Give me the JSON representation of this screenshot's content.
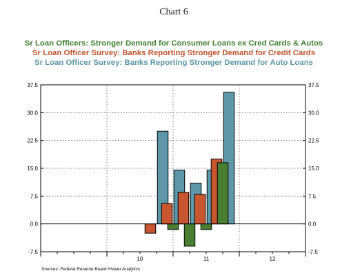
{
  "chart_data": {
    "type": "bar",
    "title": "Chart 6",
    "subtitles": [
      {
        "text": "Sr Loan Officers: Stronger Demand for Consumer Loans ex Cred Cards & Autos",
        "color": "#3f7f2f"
      },
      {
        "text": "Sr Loan Officer Survey: Banks Reporting Stronger Demand for Credit Cards",
        "color": "#c0522a"
      },
      {
        "text": "Sr Loan Officer Survey: Banks Reporting Stronger Demand for Auto Loans",
        "color": "#5b95a5"
      }
    ],
    "source": "Sources:  Federal Reserve Board /Haver Analytics",
    "ylim": [
      -7.5,
      37.5
    ],
    "yticks": [
      "-7.5",
      "0.0",
      "7.5",
      "15.0",
      "22.5",
      "30.0",
      "37.5"
    ],
    "xlim": [
      2009.0,
      2013.0
    ],
    "xticks": [
      {
        "label": "10",
        "x": 2010.5
      },
      {
        "label": "11",
        "x": 2011.5
      },
      {
        "label": "12",
        "x": 2012.5
      }
    ],
    "grid": true,
    "series": [
      {
        "key": "consumer",
        "color": "#4a7f32",
        "points": [
          {
            "x": 2011.0,
            "y": -1.5
          },
          {
            "x": 2011.25,
            "y": -6.0
          },
          {
            "x": 2011.5,
            "y": -1.5
          },
          {
            "x": 2011.75,
            "y": 16.5
          }
        ]
      },
      {
        "key": "credit_cards",
        "color": "#c8572f",
        "points": [
          {
            "x": 2010.75,
            "y": -2.5
          },
          {
            "x": 2011.0,
            "y": 5.5
          },
          {
            "x": 2011.25,
            "y": 8.5
          },
          {
            "x": 2011.5,
            "y": 8.0
          },
          {
            "x": 2011.75,
            "y": 17.5
          }
        ]
      },
      {
        "key": "auto_loans",
        "color": "#5d97a8",
        "points": [
          {
            "x": 2010.75,
            "y": 25.0
          },
          {
            "x": 2011.0,
            "y": 14.5
          },
          {
            "x": 2011.25,
            "y": 11.0
          },
          {
            "x": 2011.5,
            "y": 14.5
          },
          {
            "x": 2011.75,
            "y": 35.5
          }
        ]
      }
    ]
  }
}
